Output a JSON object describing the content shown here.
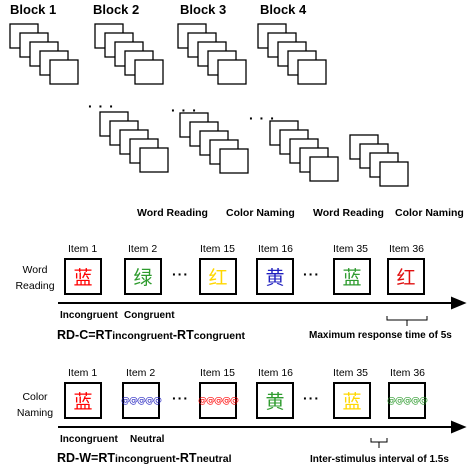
{
  "blocks": {
    "block1": "Block 1",
    "block2": "Block 2",
    "block3": "Block 3",
    "block4": "Block 4",
    "ellipsis": "· · ·"
  },
  "conditions": {
    "c1": "Word Reading",
    "c2": "Color Naming",
    "c3": "Word Reading",
    "c4": "Color Naming"
  },
  "word_reading": {
    "side_label_line1": "Word",
    "side_label_line2": "Reading",
    "items": [
      "Item 1",
      "Item 2",
      "Item 15",
      "Item 16",
      "Item 35",
      "Item 36"
    ],
    "chars": [
      "蓝",
      "绿",
      "红",
      "黄",
      "蓝",
      "红"
    ],
    "char_colors": [
      "#ff0000",
      "#2e9b2e",
      "#ffd700",
      "#1f1fbf",
      "#2e9b2e",
      "#e01010"
    ],
    "ellipsis": "···",
    "under_labels": {
      "incongruent": "Incongruent",
      "congruent": "Congruent"
    },
    "equation": {
      "prefix": "RD-C=RT",
      "sub1": "incongruent",
      "mid": "-RT",
      "sub2": "congruent"
    },
    "note": "Maximum response time of 5s"
  },
  "color_naming": {
    "side_label_line1": "Color",
    "side_label_line2": "Naming",
    "items": [
      "Item 1",
      "Item 2",
      "Item 15",
      "Item 16",
      "Item 35",
      "Item 36"
    ],
    "chars": [
      "蓝",
      "@@@@@",
      "@@@@@",
      "黄",
      "蓝",
      "@@@@@"
    ],
    "char_colors": [
      "#ff0000",
      "#1f1fbf",
      "#ff0000",
      "#2e9b2e",
      "#ffd700",
      "#2e9b2e"
    ],
    "ellipsis": "···",
    "under_labels": {
      "incongruent": "Incongruent",
      "neutral": "Neutral"
    },
    "equation": {
      "prefix": "RD-W=RT",
      "sub1": "incongruent",
      "mid": "-RT",
      "sub2": "neutral"
    },
    "note": "Inter-stimulus interval of 1.5s"
  }
}
